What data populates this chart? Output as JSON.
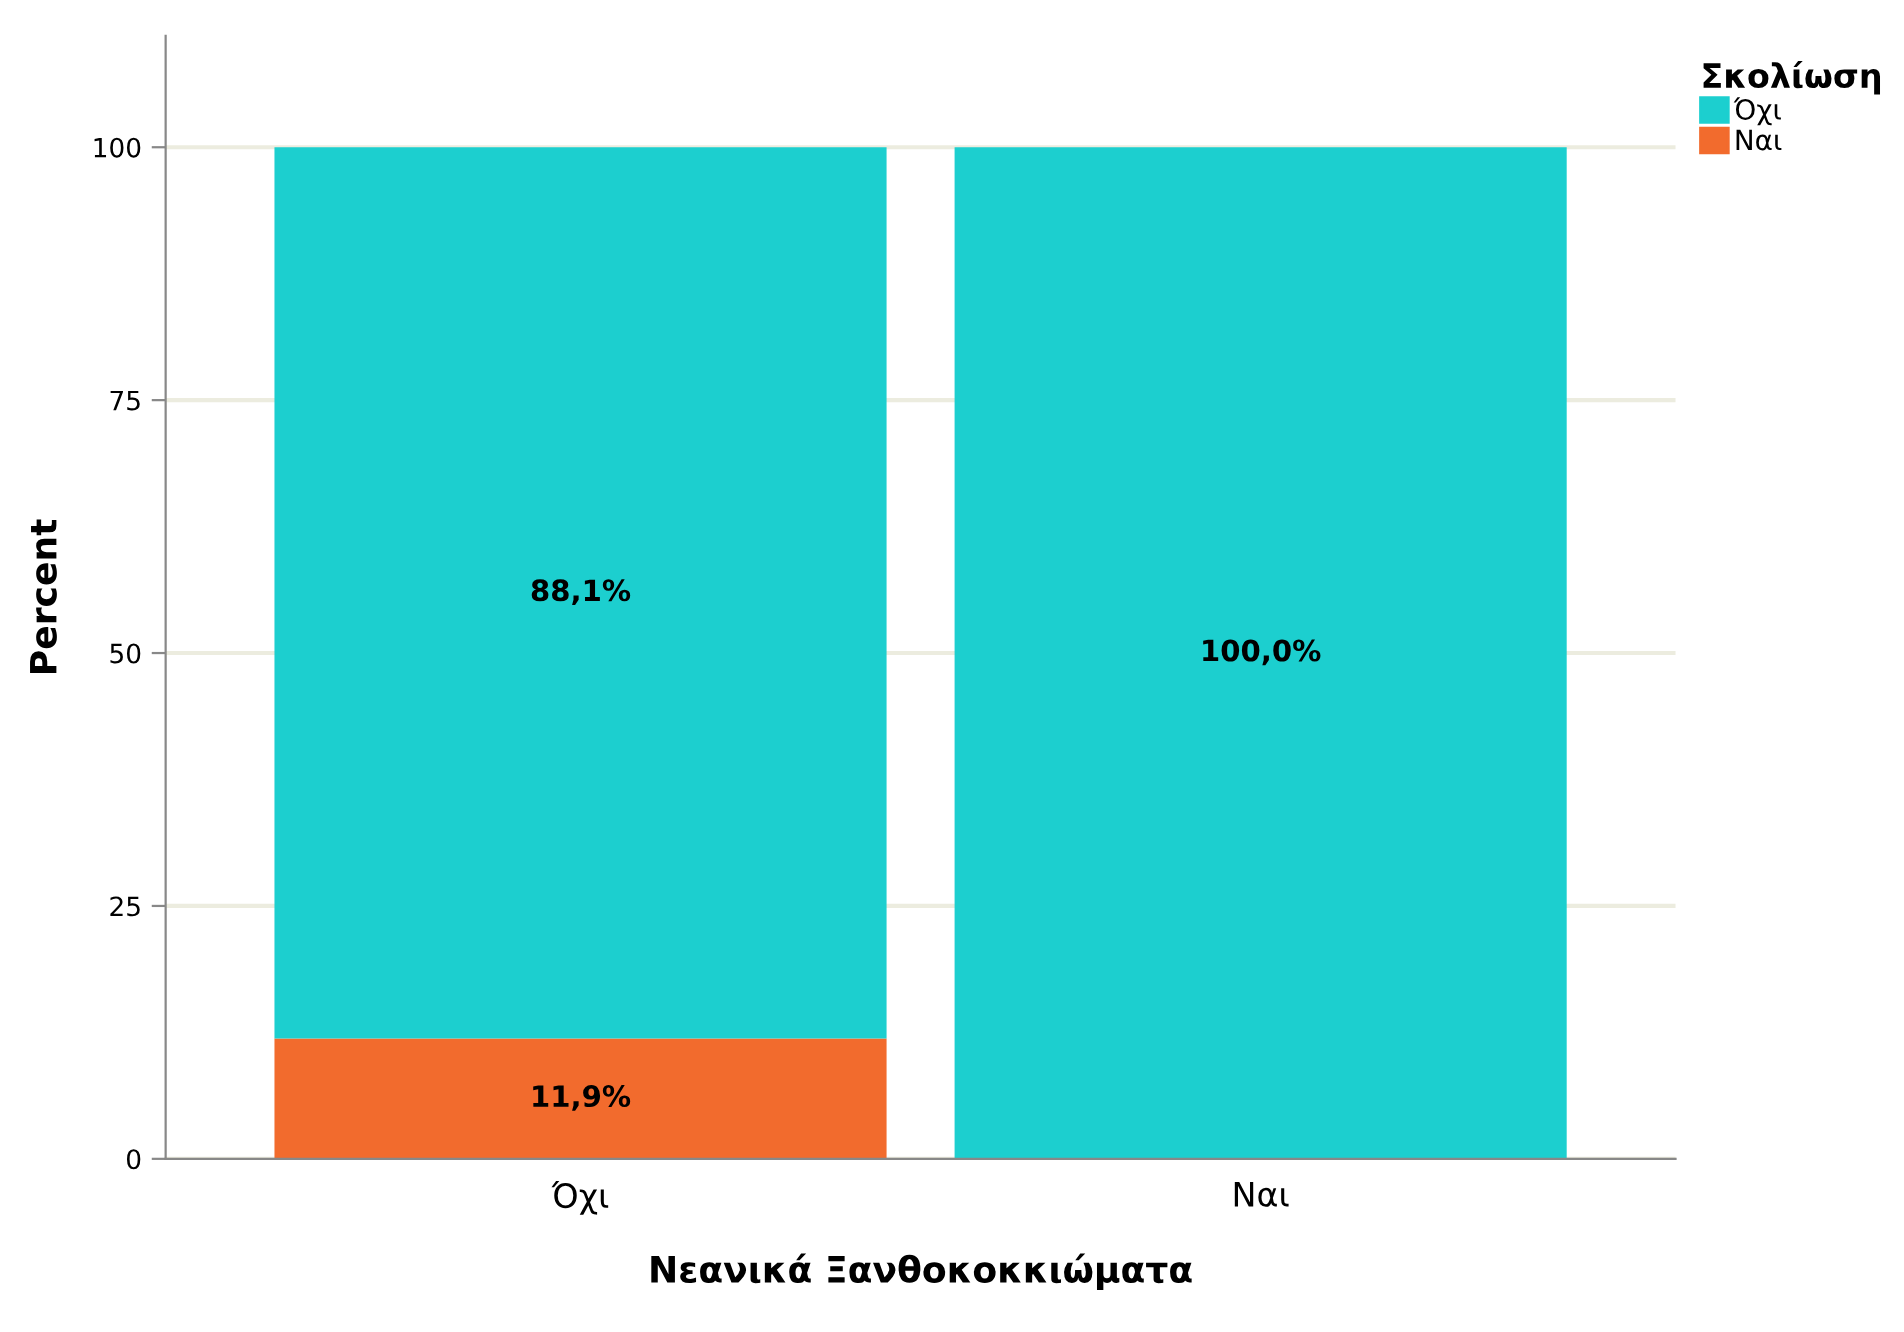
{
  "chart_data": {
    "type": "bar",
    "stacked": true,
    "xlabel": "Νεανικά Ξανθοκοκκιώματα",
    "ylabel": "Percent",
    "legend_title": "Σκολίωση",
    "legend": "top right",
    "grid": "y",
    "categories": [
      "Όχι",
      "Ναι"
    ],
    "ylim": [
      0,
      111
    ],
    "yticks": [
      0,
      25,
      50,
      75,
      100
    ],
    "series": [
      {
        "name": "Ναι",
        "color": "#f26b2d",
        "values": [
          11.9,
          0
        ],
        "value_labels": [
          "11,9%",
          null
        ]
      },
      {
        "name": "Όχι",
        "color": "#1ccfcf",
        "values": [
          88.1,
          100
        ],
        "value_labels": [
          "88,1%",
          "100,0%"
        ]
      }
    ]
  }
}
